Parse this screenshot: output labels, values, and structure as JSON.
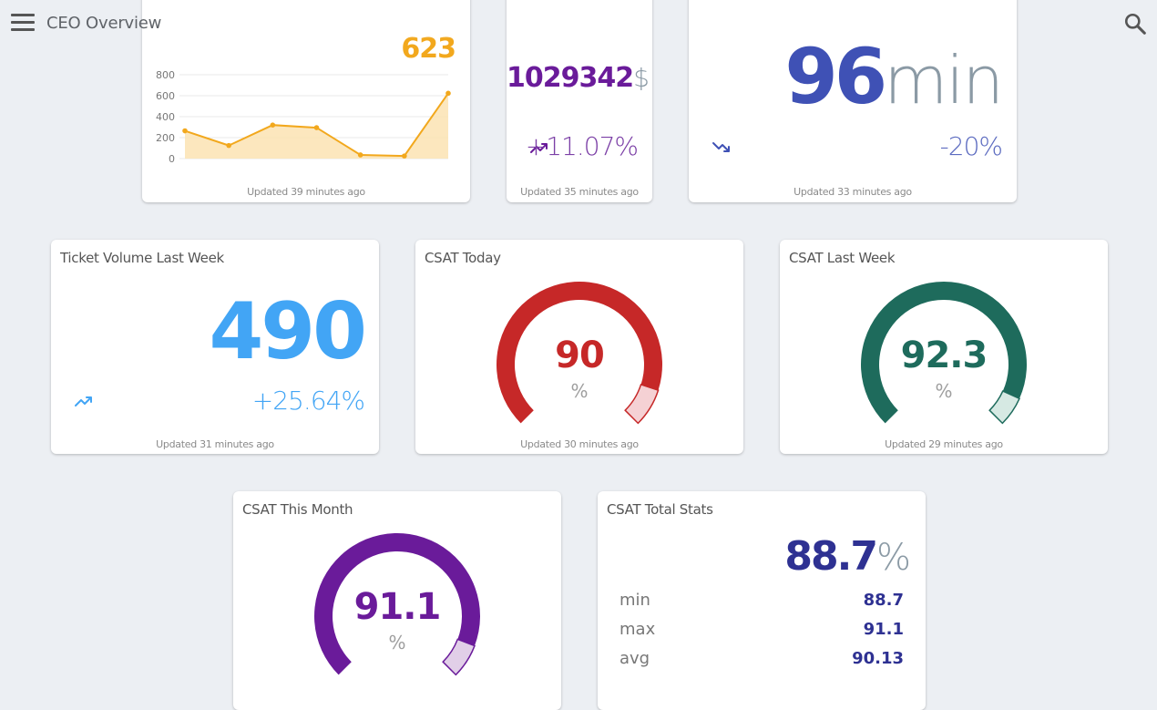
{
  "app": {
    "title": "CEO Overview"
  },
  "icons": {
    "menu": "hamburger-menu-icon",
    "search": "search-icon",
    "trend_up": "trending-up-icon",
    "trend_down": "trending-down-icon"
  },
  "colors": {
    "orange": "#f2a81d",
    "purple": "#6a1b9a",
    "indigo": "#3f51b5",
    "blue": "#42a5f5",
    "red": "#c62828",
    "green": "#1e6b5c",
    "navy": "#2e3192"
  },
  "cards": {
    "ticket_chart": {
      "value": "623",
      "footer": "Updated 39 minutes ago",
      "chart_data": {
        "type": "line",
        "title": "",
        "x": [
          1,
          2,
          3,
          4,
          5,
          6,
          7
        ],
        "values": [
          265,
          125,
          320,
          295,
          35,
          25,
          623
        ],
        "yticks": [
          "800",
          "600",
          "400",
          "200",
          "0"
        ],
        "ylim": [
          0,
          800
        ],
        "grid": true,
        "area": true
      }
    },
    "revenue": {
      "value": "1029342",
      "unit": "$",
      "delta": "+11.07%",
      "footer": "Updated 35 minutes ago"
    },
    "response_time": {
      "value": "96",
      "unit": "min",
      "delta": "-20%",
      "footer": "Updated 33 minutes ago"
    },
    "ticket_volume": {
      "title": "Ticket Volume Last Week",
      "value": "490",
      "delta": "+25.64%",
      "footer": "Updated 31 minutes ago"
    },
    "csat_today": {
      "title": "CSAT Today",
      "value": "90",
      "unit": "%",
      "fraction": 0.9,
      "footer": "Updated 30 minutes ago"
    },
    "csat_last_week": {
      "title": "CSAT Last Week",
      "value": "92.3",
      "unit": "%",
      "fraction": 0.923,
      "footer": "Updated 29 minutes ago"
    },
    "csat_this_month": {
      "title": "CSAT This Month",
      "value": "91.1",
      "unit": "%",
      "fraction": 0.911
    },
    "csat_total": {
      "title": "CSAT Total Stats",
      "value": "88.7",
      "unit": "%",
      "stats": [
        {
          "label": "min",
          "value": "88.7"
        },
        {
          "label": "max",
          "value": "91.1"
        },
        {
          "label": "avg",
          "value": "90.13"
        }
      ]
    }
  }
}
